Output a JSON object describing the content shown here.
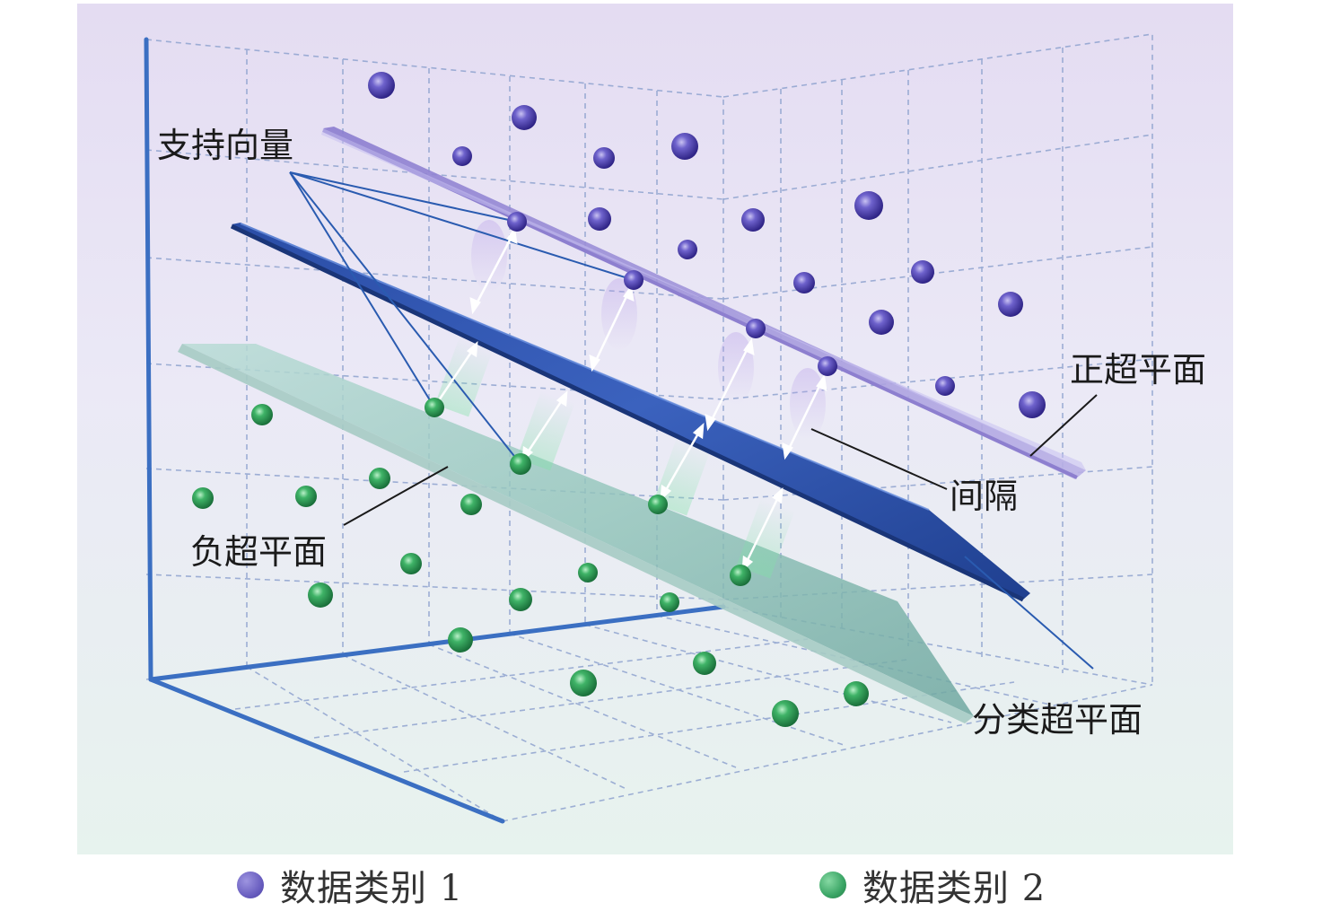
{
  "diagram": {
    "labels": {
      "support_vectors": "支持向量",
      "positive_hyperplane": "正超平面",
      "margin": "间隔",
      "negative_hyperplane": "负超平面",
      "classification_hyperplane": "分类超平面"
    },
    "legend": [
      {
        "label": "数据类别 1",
        "color": "#6a5fc0"
      },
      {
        "label": "数据类别 2",
        "color": "#3aa565"
      }
    ],
    "colors": {
      "class1": "#5a4fb5",
      "class2": "#2f9b57",
      "axis": "#3b6fc2",
      "grid": "#8fa3cf",
      "positive_plane": "#9b8fd8",
      "classification_plane": "#2b4fa8",
      "negative_plane": "#7fb8ae",
      "support_vector_line": "#2a5bb0",
      "margin_arrow": "#ffffff"
    }
  }
}
